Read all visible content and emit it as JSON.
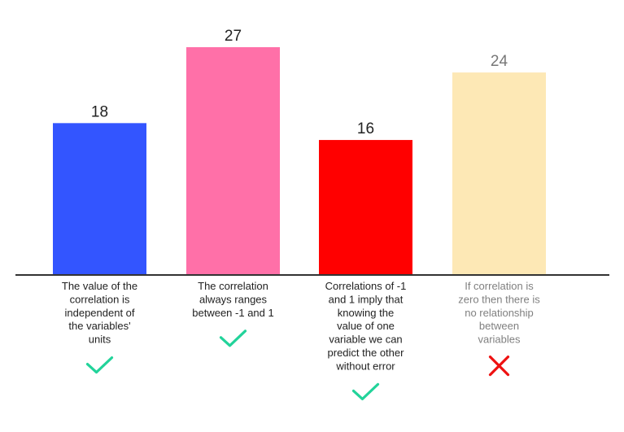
{
  "chart_data": {
    "type": "bar",
    "title": "",
    "xlabel": "",
    "ylabel": "",
    "categories": [
      "The value of the correlation is independent of the variables' units",
      "The correlation always ranges between -1 and 1",
      "Correlations of -1 and 1 imply that knowing the value of one variable we can predict the other without error",
      "If correlation is zero then there is no relationship between variables"
    ],
    "category_lines": [
      [
        "The value of the",
        "correlation is",
        "independent of",
        "the variables'",
        "units"
      ],
      [
        "The correlation",
        "always ranges",
        "between -1 and 1"
      ],
      [
        "Correlations of -1",
        "and 1 imply that",
        "knowing the",
        "value of one",
        "variable we can",
        "predict the other",
        "without error"
      ],
      [
        "If correlation is",
        "zero then there is",
        "no relationship",
        "between",
        "variables"
      ]
    ],
    "values": [
      18,
      27,
      16,
      24
    ],
    "ylim": [
      0,
      27
    ],
    "grid": false,
    "bar_colors": [
      "#3355ff",
      "#ff70a8",
      "#ff0000",
      "#fde8b5"
    ],
    "label_colors": [
      "#222222",
      "#222222",
      "#222222",
      "#808080"
    ],
    "value_label_colors": [
      "#222222",
      "#222222",
      "#222222",
      "#777777"
    ],
    "marks": [
      {
        "icon": "check-icon",
        "color": "#22d39a"
      },
      {
        "icon": "check-icon",
        "color": "#22d39a"
      },
      {
        "icon": "check-icon",
        "color": "#22d39a"
      },
      {
        "icon": "cross-icon",
        "color": "#ee1111"
      }
    ]
  }
}
